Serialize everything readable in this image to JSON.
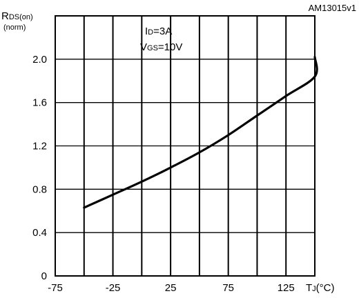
{
  "figure_id": "AM13015v1",
  "chart_data": {
    "type": "line",
    "ylabel_main": "R",
    "ylabel_sub": "DS(on)",
    "ylabel_unit": "(norm)",
    "xlabel_main": "T",
    "xlabel_sub": "J",
    "xlabel_unit": "(°C)",
    "xlim": [
      -75,
      150
    ],
    "ylim": [
      0,
      2.4
    ],
    "x_ticks": [
      -75,
      -25,
      25,
      75,
      125
    ],
    "x_tick_labels": [
      "-75",
      "-25",
      "25",
      "75",
      "125"
    ],
    "y_ticks": [
      0,
      0.4,
      0.8,
      1.2,
      1.6,
      2.0
    ],
    "y_tick_labels": [
      "0",
      "0.4",
      "0.8",
      "1.2",
      "1.6",
      "2.0"
    ],
    "x_gridlines": [
      -75,
      -50,
      -25,
      0,
      25,
      50,
      75,
      100,
      125,
      150
    ],
    "y_gridlines": [
      0,
      0.4,
      0.8,
      1.2,
      1.6,
      2.0,
      2.4
    ],
    "grid": true,
    "conditions": [
      {
        "main": "I",
        "sub": "D",
        "rest": "=3A"
      },
      {
        "main": "V",
        "sub": "GS",
        "rest": "=10V"
      }
    ],
    "series": [
      {
        "x": [
          -50,
          -25,
          0,
          25,
          50,
          75,
          100,
          125,
          150
        ],
        "y": [
          0.63,
          0.75,
          0.87,
          1.0,
          1.14,
          1.3,
          1.48,
          1.66,
          1.84
        ],
        "color": "#000000"
      }
    ],
    "series_end": {
      "x": 165,
      "y": 2.02
    }
  }
}
